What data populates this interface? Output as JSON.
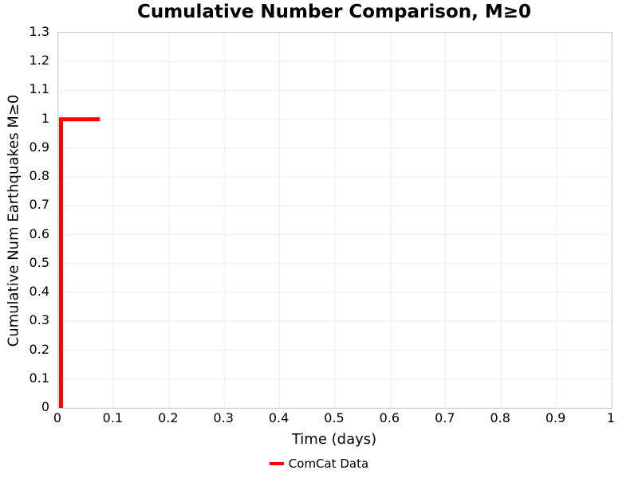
{
  "chart_data": {
    "type": "line",
    "title": "Cumulative Number Comparison, M≥0",
    "xlabel": "Time (days)",
    "ylabel": "Cumulative Num Earthquakes M≥0",
    "xlim": [
      0,
      1
    ],
    "ylim": [
      0,
      1.3
    ],
    "grid": true,
    "legend_position": "lower center, below axes",
    "xticks": {
      "values": [
        0,
        0.1,
        0.2,
        0.3,
        0.4,
        0.5,
        0.6,
        0.7,
        0.8,
        0.9,
        1
      ],
      "labels": [
        "0",
        "0.1",
        "0.2",
        "0.3",
        "0.4",
        "0.5",
        "0.6",
        "0.7",
        "0.8",
        "0.9",
        "1"
      ]
    },
    "yticks": {
      "values": [
        0,
        0.1,
        0.2,
        0.3,
        0.4,
        0.5,
        0.6,
        0.7,
        0.8,
        0.9,
        1,
        1.1,
        1.2,
        1.3
      ],
      "labels": [
        "0",
        "0.1",
        "0.2",
        "0.3",
        "0.4",
        "0.5",
        "0.6",
        "0.7",
        "0.8",
        "0.9",
        "1",
        "1.1",
        "1.2",
        "1.3"
      ]
    },
    "series": [
      {
        "name": "ComCat Data",
        "color": "#ff0000",
        "line_width": 5,
        "draw_style": "step",
        "points": [
          [
            0.005,
            0
          ],
          [
            0.005,
            1
          ],
          [
            0.075,
            1
          ]
        ]
      }
    ]
  },
  "colors": {
    "series_red": "#ff0000",
    "grid": "#ececec",
    "axis_border": "#adadad",
    "text": "#000000",
    "background": "#ffffff"
  }
}
